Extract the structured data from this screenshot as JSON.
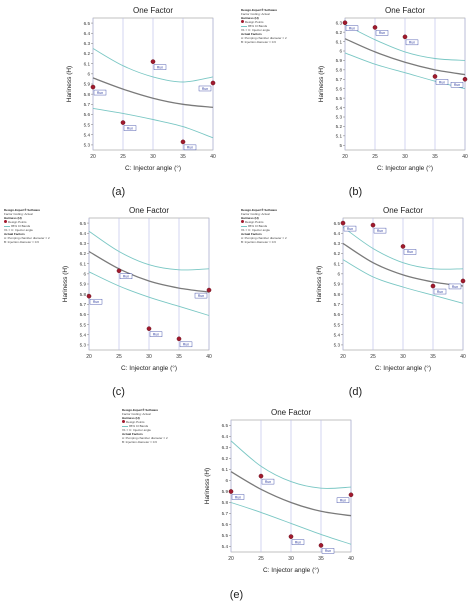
{
  "software_caption": "Design-Expert® Software",
  "transform_caption": "Factor Coding: Actual",
  "response_caption": "Hariness (H)",
  "design_points_caption": "Design Points",
  "ci_caption": "95% CI Bands",
  "factor_caption": "X1 = C: Injector angle",
  "actual_factors_caption": "Actual Factors",
  "factor_a_caption": "A: Pumping chamber diameter = 2",
  "factor_b_caption": "B: Injection diameter = 0.6",
  "colors": {
    "fit": "#7a7a7a",
    "ci": "#7ac7c4",
    "point": "#a11a2e",
    "grid": "#b6b9e6",
    "label": "#2c3a9e"
  },
  "chart_data": [
    {
      "type": "scatter",
      "caption": "(a)",
      "title": "One Factor",
      "xlabel": "C: Injector angle (°)",
      "ylabel": "Hariness (H)",
      "xlim": [
        20,
        40
      ],
      "ylim": [
        5.25,
        6.55
      ],
      "xticks": [
        "20",
        "25",
        "30",
        "35",
        "40"
      ],
      "yticks": [
        "5.3",
        "5.4",
        "5.5",
        "5.6",
        "5.7",
        "5.8",
        "5.9",
        "6",
        "6.1",
        "6.2",
        "6.3",
        "6.4",
        "6.5"
      ],
      "show_info": false,
      "points": [
        {
          "x": 20,
          "y": 5.87,
          "label": "Run"
        },
        {
          "x": 25,
          "y": 5.52,
          "label": "Run"
        },
        {
          "x": 30,
          "y": 6.12,
          "label": "Run"
        },
        {
          "x": 35,
          "y": 5.33,
          "label": "Run"
        },
        {
          "x": 40,
          "y": 5.91,
          "label": "Run"
        }
      ],
      "fit": {
        "x": [
          20,
          25,
          30,
          35,
          40
        ],
        "y": [
          5.96,
          5.85,
          5.76,
          5.7,
          5.67
        ]
      },
      "ci_upper": {
        "x": [
          20,
          25,
          30,
          35,
          40
        ],
        "y": [
          6.25,
          6.08,
          5.97,
          5.92,
          5.97
        ]
      },
      "ci_lower": {
        "x": [
          20,
          25,
          30,
          35,
          40
        ],
        "y": [
          5.66,
          5.61,
          5.55,
          5.48,
          5.37
        ]
      }
    },
    {
      "type": "scatter",
      "caption": "(b)",
      "title": "One Factor",
      "xlabel": "C: Injector angle (°)",
      "ylabel": "Hariness (H)",
      "xlim": [
        20,
        40
      ],
      "ylim": [
        4.95,
        6.35
      ],
      "xticks": [
        "20",
        "25",
        "30",
        "35",
        "40"
      ],
      "yticks": [
        "5",
        "5.1",
        "5.2",
        "5.3",
        "5.4",
        "5.5",
        "5.6",
        "5.7",
        "5.8",
        "5.9",
        "6",
        "6.1",
        "6.2",
        "6.3"
      ],
      "show_info": true,
      "points": [
        {
          "x": 20,
          "y": 6.3,
          "label": "Run"
        },
        {
          "x": 25,
          "y": 6.25,
          "label": "Run"
        },
        {
          "x": 30,
          "y": 6.15,
          "label": "Run"
        },
        {
          "x": 35,
          "y": 5.73,
          "label": "Run"
        },
        {
          "x": 40,
          "y": 5.7,
          "label": "Run"
        }
      ],
      "fit": {
        "x": [
          20,
          25,
          30,
          35,
          40
        ],
        "y": [
          6.13,
          5.99,
          5.88,
          5.8,
          5.75
        ]
      },
      "ci_upper": {
        "x": [
          20,
          25,
          30,
          35,
          40
        ],
        "y": [
          6.28,
          6.12,
          5.99,
          5.92,
          5.9
        ]
      },
      "ci_lower": {
        "x": [
          20,
          25,
          30,
          35,
          40
        ],
        "y": [
          5.98,
          5.86,
          5.77,
          5.68,
          5.6
        ]
      }
    },
    {
      "type": "scatter",
      "caption": "(c)",
      "title": "One Factor",
      "xlabel": "C: Injector angle (°)",
      "ylabel": "Hariness (H)",
      "xlim": [
        20,
        40
      ],
      "ylim": [
        5.25,
        6.55
      ],
      "xticks": [
        "20",
        "25",
        "30",
        "35",
        "40"
      ],
      "yticks": [
        "5.3",
        "5.4",
        "5.5",
        "5.6",
        "5.7",
        "5.8",
        "5.9",
        "6",
        "6.1",
        "6.2",
        "6.3",
        "6.4",
        "6.5"
      ],
      "show_info": true,
      "points": [
        {
          "x": 20,
          "y": 5.78,
          "label": "Run"
        },
        {
          "x": 25,
          "y": 6.03,
          "label": "Run"
        },
        {
          "x": 30,
          "y": 5.46,
          "label": "Run"
        },
        {
          "x": 35,
          "y": 5.36,
          "label": "Run"
        },
        {
          "x": 40,
          "y": 5.84,
          "label": "Run"
        }
      ],
      "fit": {
        "x": [
          20,
          25,
          30,
          35,
          40
        ],
        "y": [
          6.22,
          6.05,
          5.93,
          5.86,
          5.82
        ]
      },
      "ci_upper": {
        "x": [
          20,
          25,
          30,
          35,
          40
        ],
        "y": [
          6.42,
          6.22,
          6.09,
          6.04,
          6.05
        ]
      },
      "ci_lower": {
        "x": [
          20,
          25,
          30,
          35,
          40
        ],
        "y": [
          6.02,
          5.88,
          5.77,
          5.68,
          5.59
        ]
      }
    },
    {
      "type": "scatter",
      "caption": "(d)",
      "title": "One Factor",
      "xlabel": "C: Injector angle (°)",
      "ylabel": "Hariness (H)",
      "xlim": [
        20,
        40
      ],
      "ylim": [
        5.25,
        6.55
      ],
      "xticks": [
        "20",
        "25",
        "30",
        "35",
        "40"
      ],
      "yticks": [
        "5.3",
        "5.4",
        "5.5",
        "5.6",
        "5.7",
        "5.8",
        "5.9",
        "6",
        "6.1",
        "6.2",
        "6.3",
        "6.4",
        "6.5"
      ],
      "show_info": true,
      "points": [
        {
          "x": 20,
          "y": 6.5,
          "label": "Run"
        },
        {
          "x": 25,
          "y": 6.48,
          "label": "Run"
        },
        {
          "x": 30,
          "y": 6.27,
          "label": "Run"
        },
        {
          "x": 35,
          "y": 5.88,
          "label": "Run"
        },
        {
          "x": 40,
          "y": 5.93,
          "label": "Run"
        }
      ],
      "fit": {
        "x": [
          20,
          25,
          30,
          35,
          40
        ],
        "y": [
          6.3,
          6.11,
          5.99,
          5.92,
          5.88
        ]
      },
      "ci_upper": {
        "x": [
          20,
          25,
          30,
          35,
          40
        ],
        "y": [
          6.46,
          6.25,
          6.11,
          6.05,
          6.05
        ]
      },
      "ci_lower": {
        "x": [
          20,
          25,
          30,
          35,
          40
        ],
        "y": [
          6.14,
          5.97,
          5.87,
          5.79,
          5.71
        ]
      }
    },
    {
      "type": "scatter",
      "caption": "(e)",
      "title": "One Factor",
      "xlabel": "C: Injector angle (°)",
      "ylabel": "Hariness (H)",
      "xlim": [
        20,
        40
      ],
      "ylim": [
        5.35,
        6.55
      ],
      "xticks": [
        "20",
        "25",
        "30",
        "35",
        "40"
      ],
      "yticks": [
        "5.4",
        "5.5",
        "5.6",
        "5.7",
        "5.8",
        "5.9",
        "6",
        "6.1",
        "6.2",
        "6.3",
        "6.4",
        "6.5"
      ],
      "show_info": true,
      "points": [
        {
          "x": 20,
          "y": 5.9,
          "label": "Run"
        },
        {
          "x": 25,
          "y": 6.04,
          "label": "Run"
        },
        {
          "x": 30,
          "y": 5.49,
          "label": "Run"
        },
        {
          "x": 35,
          "y": 5.41,
          "label": "Run"
        },
        {
          "x": 40,
          "y": 5.87,
          "label": "Run"
        }
      ],
      "fit": {
        "x": [
          20,
          25,
          30,
          35,
          40
        ],
        "y": [
          6.08,
          5.92,
          5.8,
          5.72,
          5.68
        ]
      },
      "ci_upper": {
        "x": [
          20,
          25,
          30,
          35,
          40
        ],
        "y": [
          6.36,
          6.13,
          5.99,
          5.93,
          5.94
        ]
      },
      "ci_lower": {
        "x": [
          20,
          25,
          30,
          35,
          40
        ],
        "y": [
          5.8,
          5.71,
          5.61,
          5.51,
          5.42
        ]
      }
    }
  ]
}
